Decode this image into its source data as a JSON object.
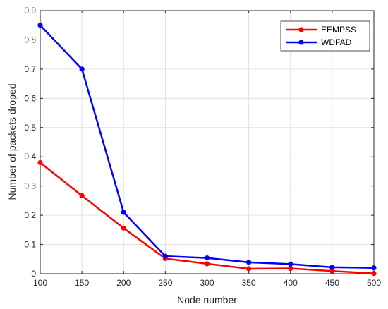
{
  "chart_data": {
    "type": "line",
    "xlabel": "Node number",
    "ylabel": "Number of packets droped",
    "x": [
      100,
      150,
      200,
      250,
      300,
      350,
      400,
      450,
      500
    ],
    "xlim": [
      100,
      500
    ],
    "ylim": [
      0,
      0.9
    ],
    "xticks": [
      "100",
      "150",
      "200",
      "250",
      "300",
      "350",
      "400",
      "450",
      "500"
    ],
    "yticks": [
      "0",
      "0.1",
      "0.2",
      "0.3",
      "0.4",
      "0.5",
      "0.6",
      "0.7",
      "0.8",
      "0.9"
    ],
    "grid": true,
    "legend_position": "top-right",
    "series": [
      {
        "name": "EEMPSS",
        "color": "#ff0000",
        "values": [
          0.38,
          0.267,
          0.156,
          0.052,
          0.034,
          0.017,
          0.018,
          0.009,
          0.001
        ]
      },
      {
        "name": "WDFAD",
        "color": "#0000ff",
        "values": [
          0.85,
          0.7,
          0.21,
          0.06,
          0.054,
          0.039,
          0.033,
          0.022,
          0.02
        ]
      }
    ]
  }
}
